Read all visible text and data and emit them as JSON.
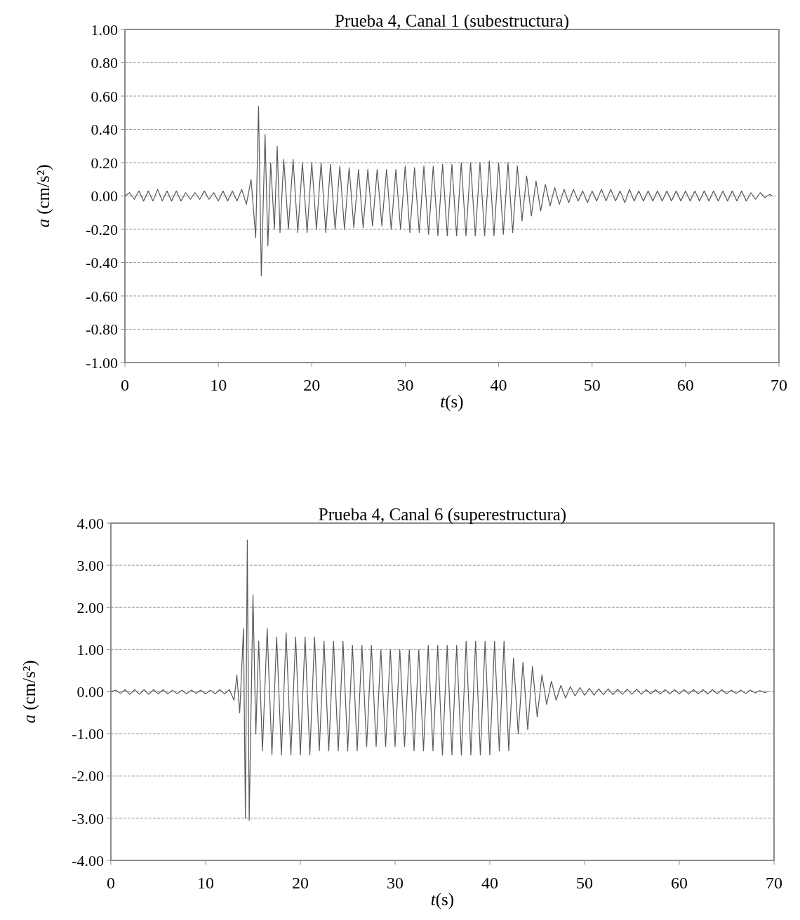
{
  "chart_data": [
    {
      "type": "line",
      "title": "Prueba 4, Canal 1 (subestructura)",
      "xlabel": "t(s)",
      "ylabel": "a (cm/s²)",
      "xlim": [
        0,
        70
      ],
      "xticks": [
        0,
        10,
        20,
        30,
        40,
        50,
        60,
        70
      ],
      "ylim": [
        -1,
        1
      ],
      "yticks": [
        {
          "value": -1,
          "label": "-1.00"
        },
        {
          "value": -0.8,
          "label": "-0.80"
        },
        {
          "value": -0.6,
          "label": "-0.60"
        },
        {
          "value": -0.4,
          "label": "-0.40"
        },
        {
          "value": -0.2,
          "label": "-0.20"
        },
        {
          "value": 0,
          "label": "0.00"
        },
        {
          "value": 0.2,
          "label": "0.20"
        },
        {
          "value": 0.4,
          "label": "0.40"
        },
        {
          "value": 0.6,
          "label": "0.60"
        },
        {
          "value": 0.8,
          "label": "0.80"
        },
        {
          "value": 1,
          "label": "1.00"
        }
      ],
      "grid": "y",
      "line_style": "solid",
      "marker": "none",
      "x": [
        0,
        0.5,
        1,
        1.5,
        2,
        2.5,
        3,
        3.5,
        4,
        4.5,
        5,
        5.5,
        6,
        6.5,
        7,
        7.5,
        8,
        8.5,
        9,
        9.5,
        10,
        10.5,
        11,
        11.5,
        12,
        12.5,
        13,
        13.5,
        14,
        14.3,
        14.6,
        15,
        15.3,
        15.6,
        16,
        16.3,
        16.6,
        17,
        17.5,
        18,
        18.5,
        19,
        19.5,
        20,
        20.5,
        21,
        21.5,
        22,
        22.5,
        23,
        23.5,
        24,
        24.5,
        25,
        25.5,
        26,
        26.5,
        27,
        27.5,
        28,
        28.5,
        29,
        29.5,
        30,
        30.5,
        31,
        31.5,
        32,
        32.5,
        33,
        33.5,
        34,
        34.5,
        35,
        35.5,
        36,
        36.5,
        37,
        37.5,
        38,
        38.5,
        39,
        39.5,
        40,
        40.5,
        41,
        41.5,
        42,
        42.5,
        43,
        43.5,
        44,
        44.5,
        45,
        45.5,
        46,
        46.5,
        47,
        47.5,
        48,
        48.5,
        49,
        49.5,
        50,
        50.5,
        51,
        51.5,
        52,
        52.5,
        53,
        53.5,
        54,
        54.5,
        55,
        55.5,
        56,
        56.5,
        57,
        57.5,
        58,
        58.5,
        59,
        59.5,
        60,
        60.5,
        61,
        61.5,
        62,
        62.5,
        63,
        63.5,
        64,
        64.5,
        65,
        65.5,
        66,
        66.5,
        67,
        67.5,
        68,
        68.5,
        69,
        69.3
      ],
      "series": [
        {
          "color": "#595959",
          "values": [
            0,
            0.02,
            -0.02,
            0.03,
            -0.03,
            0.03,
            -0.03,
            0.04,
            -0.03,
            0.03,
            -0.03,
            0.03,
            -0.03,
            0.02,
            -0.02,
            0.02,
            -0.02,
            0.03,
            -0.02,
            0.02,
            -0.03,
            0.03,
            -0.03,
            0.03,
            -0.03,
            0.04,
            -0.05,
            0.1,
            -0.25,
            0.54,
            -0.48,
            0.37,
            -0.3,
            0.2,
            -0.2,
            0.3,
            -0.22,
            0.22,
            -0.2,
            0.22,
            -0.22,
            0.2,
            -0.22,
            0.2,
            -0.2,
            0.2,
            -0.22,
            0.19,
            -0.2,
            0.18,
            -0.2,
            0.17,
            -0.19,
            0.16,
            -0.19,
            0.16,
            -0.18,
            0.16,
            -0.18,
            0.16,
            -0.2,
            0.16,
            -0.2,
            0.18,
            -0.22,
            0.17,
            -0.22,
            0.18,
            -0.23,
            0.18,
            -0.24,
            0.19,
            -0.24,
            0.19,
            -0.24,
            0.2,
            -0.24,
            0.2,
            -0.24,
            0.2,
            -0.24,
            0.21,
            -0.24,
            0.2,
            -0.23,
            0.2,
            -0.22,
            0.18,
            -0.15,
            0.12,
            -0.12,
            0.09,
            -0.09,
            0.07,
            -0.06,
            0.05,
            -0.05,
            0.04,
            -0.04,
            0.04,
            -0.03,
            0.03,
            -0.04,
            0.03,
            -0.03,
            0.04,
            -0.03,
            0.04,
            -0.03,
            0.03,
            -0.04,
            0.04,
            -0.03,
            0.03,
            -0.03,
            0.03,
            -0.03,
            0.03,
            -0.03,
            0.03,
            -0.03,
            0.03,
            -0.03,
            0.03,
            -0.03,
            0.03,
            -0.03,
            0.03,
            -0.03,
            0.03,
            -0.03,
            0.03,
            -0.03,
            0.03,
            -0.03,
            0.03,
            -0.03,
            0.02,
            -0.02,
            0.02,
            -0.01,
            0.01,
            0
          ]
        }
      ]
    },
    {
      "type": "line",
      "title": "Prueba 4, Canal 6 (superestructura)",
      "xlabel": "t(s)",
      "ylabel": "a (cm/s²)",
      "xlim": [
        0,
        70
      ],
      "xticks": [
        0,
        10,
        20,
        30,
        40,
        50,
        60,
        70
      ],
      "ylim": [
        -4,
        4
      ],
      "yticks": [
        {
          "value": -4,
          "label": "-4.00"
        },
        {
          "value": -3,
          "label": "-3.00"
        },
        {
          "value": -2,
          "label": "-2.00"
        },
        {
          "value": -1,
          "label": "-1.00"
        },
        {
          "value": 0,
          "label": "0.00"
        },
        {
          "value": 1,
          "label": "1.00"
        },
        {
          "value": 2,
          "label": "2.00"
        },
        {
          "value": 3,
          "label": "3.00"
        },
        {
          "value": 4,
          "label": "4.00"
        }
      ],
      "grid": "y",
      "line_style": "solid",
      "marker": "none",
      "x": [
        0,
        0.5,
        1,
        1.5,
        2,
        2.5,
        3,
        3.5,
        4,
        4.5,
        5,
        5.5,
        6,
        6.5,
        7,
        7.5,
        8,
        8.5,
        9,
        9.5,
        10,
        10.5,
        11,
        11.5,
        12,
        12.5,
        13,
        13.3,
        13.6,
        14,
        14.2,
        14.4,
        14.6,
        15,
        15.3,
        15.6,
        16,
        16.5,
        17,
        17.5,
        18,
        18.5,
        19,
        19.5,
        20,
        20.5,
        21,
        21.5,
        22,
        22.5,
        23,
        23.5,
        24,
        24.5,
        25,
        25.5,
        26,
        26.5,
        27,
        27.5,
        28,
        28.5,
        29,
        29.5,
        30,
        30.5,
        31,
        31.5,
        32,
        32.5,
        33,
        33.5,
        34,
        34.5,
        35,
        35.5,
        36,
        36.5,
        37,
        37.5,
        38,
        38.5,
        39,
        39.5,
        40,
        40.5,
        41,
        41.5,
        42,
        42.5,
        43,
        43.5,
        44,
        44.5,
        45,
        45.5,
        46,
        46.5,
        47,
        47.5,
        48,
        48.5,
        49,
        49.5,
        50,
        50.5,
        51,
        51.5,
        52,
        52.5,
        53,
        53.5,
        54,
        54.5,
        55,
        55.5,
        56,
        56.5,
        57,
        57.5,
        58,
        58.5,
        59,
        59.5,
        60,
        60.5,
        61,
        61.5,
        62,
        62.5,
        63,
        63.5,
        64,
        64.5,
        65,
        65.5,
        66,
        66.5,
        67,
        67.5,
        68,
        68.5,
        69,
        69.3
      ],
      "series": [
        {
          "color": "#595959",
          "values": [
            0,
            0.04,
            -0.04,
            0.05,
            -0.06,
            0.05,
            -0.06,
            0.05,
            -0.06,
            0.05,
            -0.05,
            0.05,
            -0.05,
            0.04,
            -0.05,
            0.04,
            -0.05,
            0.04,
            -0.04,
            0.04,
            -0.05,
            0.04,
            -0.05,
            0.05,
            -0.05,
            0.05,
            -0.2,
            0.4,
            -0.5,
            1.5,
            -3.0,
            3.6,
            -3.05,
            2.3,
            -1.0,
            1.2,
            -1.4,
            1.5,
            -1.5,
            1.3,
            -1.5,
            1.4,
            -1.5,
            1.3,
            -1.5,
            1.3,
            -1.5,
            1.3,
            -1.4,
            1.2,
            -1.4,
            1.2,
            -1.4,
            1.2,
            -1.4,
            1.1,
            -1.4,
            1.1,
            -1.3,
            1.1,
            -1.3,
            1.0,
            -1.3,
            1.0,
            -1.3,
            1.0,
            -1.3,
            1.0,
            -1.4,
            1.0,
            -1.4,
            1.1,
            -1.4,
            1.1,
            -1.5,
            1.1,
            -1.5,
            1.1,
            -1.5,
            1.2,
            -1.5,
            1.2,
            -1.5,
            1.2,
            -1.5,
            1.2,
            -1.4,
            1.2,
            -1.4,
            0.8,
            -1.0,
            0.7,
            -0.9,
            0.6,
            -0.6,
            0.4,
            -0.3,
            0.25,
            -0.2,
            0.15,
            -0.15,
            0.12,
            -0.1,
            0.1,
            -0.08,
            0.08,
            -0.08,
            0.07,
            -0.07,
            0.07,
            -0.07,
            0.06,
            -0.06,
            0.06,
            -0.06,
            0.06,
            -0.06,
            0.05,
            -0.05,
            0.05,
            -0.05,
            0.05,
            -0.05,
            0.05,
            -0.05,
            0.05,
            -0.05,
            0.05,
            -0.05,
            0.05,
            -0.05,
            0.05,
            -0.05,
            0.05,
            -0.05,
            0.04,
            -0.04,
            0.04,
            -0.04,
            0.04,
            -0.03,
            0.03,
            -0.02,
            0
          ]
        }
      ]
    }
  ]
}
